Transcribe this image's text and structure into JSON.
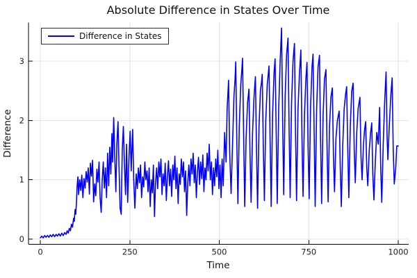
{
  "chart_data": {
    "type": "line",
    "title": "Absolute Difference in States Over Time",
    "xlabel": "Time",
    "ylabel": "Difference",
    "legend": {
      "label": "Difference in States",
      "position": "top-left"
    },
    "series_color": "#0000ff",
    "grid": true,
    "x_ticks": [
      0,
      250,
      500,
      750,
      1000
    ],
    "y_ticks": [
      0,
      1,
      2,
      3
    ],
    "xlim": [
      -33,
      1029
    ],
    "ylim": [
      -0.09,
      3.65
    ],
    "points": [
      [
        0,
        0.02
      ],
      [
        4,
        0.05
      ],
      [
        8,
        0.02
      ],
      [
        12,
        0.06
      ],
      [
        16,
        0.03
      ],
      [
        20,
        0.06
      ],
      [
        24,
        0.03
      ],
      [
        28,
        0.07
      ],
      [
        32,
        0.04
      ],
      [
        36,
        0.08
      ],
      [
        40,
        0.04
      ],
      [
        44,
        0.08
      ],
      [
        48,
        0.05
      ],
      [
        52,
        0.09
      ],
      [
        56,
        0.05
      ],
      [
        60,
        0.1
      ],
      [
        64,
        0.06
      ],
      [
        68,
        0.11
      ],
      [
        72,
        0.08
      ],
      [
        75,
        0.14
      ],
      [
        78,
        0.1
      ],
      [
        81,
        0.18
      ],
      [
        84,
        0.14
      ],
      [
        87,
        0.25
      ],
      [
        90,
        0.2
      ],
      [
        93,
        0.35
      ],
      [
        95,
        0.3
      ],
      [
        97,
        0.5
      ],
      [
        99,
        0.42
      ],
      [
        101,
        0.62
      ],
      [
        103,
        0.9
      ],
      [
        105,
        1.05
      ],
      [
        107,
        0.75
      ],
      [
        110,
        1.0
      ],
      [
        113,
        0.82
      ],
      [
        116,
        1.08
      ],
      [
        119,
        0.7
      ],
      [
        122,
        1.02
      ],
      [
        125,
        0.86
      ],
      [
        128,
        1.14
      ],
      [
        131,
        0.96
      ],
      [
        134,
        1.2
      ],
      [
        137,
        0.76
      ],
      [
        140,
        1.28
      ],
      [
        143,
        1.06
      ],
      [
        146,
        1.33
      ],
      [
        149,
        0.63
      ],
      [
        152,
        0.93
      ],
      [
        155,
        0.73
      ],
      [
        158,
        1.18
      ],
      [
        161,
        0.96
      ],
      [
        164,
        1.3
      ],
      [
        167,
        0.7
      ],
      [
        170,
        0.45
      ],
      [
        173,
        1.0
      ],
      [
        176,
        1.3
      ],
      [
        179,
        0.86
      ],
      [
        182,
        1.2
      ],
      [
        185,
        0.7
      ],
      [
        188,
        1.45
      ],
      [
        191,
        0.9
      ],
      [
        194,
        1.55
      ],
      [
        197,
        1.1
      ],
      [
        200,
        1.78
      ],
      [
        202,
        1.3
      ],
      [
        205,
        2.05
      ],
      [
        208,
        1.4
      ],
      [
        211,
        0.8
      ],
      [
        214,
        1.62
      ],
      [
        217,
        1.98
      ],
      [
        220,
        1.2
      ],
      [
        223,
        0.52
      ],
      [
        226,
        0.42
      ],
      [
        229,
        1.5
      ],
      [
        232,
        1.9
      ],
      [
        235,
        1.28
      ],
      [
        238,
        0.75
      ],
      [
        241,
        1.6
      ],
      [
        244,
        0.62
      ],
      [
        248,
        1.42
      ],
      [
        251,
        1.82
      ],
      [
        254,
        1.15
      ],
      [
        258,
        1.85
      ],
      [
        261,
        1.0
      ],
      [
        264,
        0.52
      ],
      [
        268,
        1.1
      ],
      [
        271,
        0.85
      ],
      [
        274,
        1.2
      ],
      [
        277,
        0.95
      ],
      [
        280,
        1.25
      ],
      [
        283,
        0.7
      ],
      [
        286,
        1.05
      ],
      [
        289,
        0.88
      ],
      [
        292,
        1.3
      ],
      [
        295,
        1.0
      ],
      [
        298,
        1.15
      ],
      [
        301,
        0.8
      ],
      [
        304,
        1.2
      ],
      [
        307,
        0.55
      ],
      [
        310,
        1.0
      ],
      [
        313,
        0.78
      ],
      [
        316,
        1.25
      ],
      [
        319,
        0.38
      ],
      [
        322,
        0.95
      ],
      [
        325,
        1.2
      ],
      [
        328,
        0.85
      ],
      [
        331,
        1.3
      ],
      [
        334,
        1.05
      ],
      [
        337,
        1.35
      ],
      [
        340,
        0.75
      ],
      [
        343,
        1.1
      ],
      [
        346,
        0.9
      ],
      [
        349,
        1.28
      ],
      [
        352,
        0.65
      ],
      [
        355,
        1.05
      ],
      [
        358,
        1.32
      ],
      [
        361,
        0.9
      ],
      [
        364,
        1.18
      ],
      [
        367,
        0.72
      ],
      [
        370,
        1.25
      ],
      [
        373,
        1.0
      ],
      [
        376,
        1.4
      ],
      [
        379,
        0.85
      ],
      [
        382,
        1.2
      ],
      [
        385,
        0.6
      ],
      [
        388,
        1.1
      ],
      [
        391,
        0.92
      ],
      [
        394,
        1.35
      ],
      [
        397,
        1.05
      ],
      [
        400,
        1.3
      ],
      [
        403,
        0.8
      ],
      [
        406,
        1.15
      ],
      [
        409,
        0.4
      ],
      [
        412,
        0.95
      ],
      [
        415,
        1.25
      ],
      [
        418,
        0.9
      ],
      [
        421,
        1.35
      ],
      [
        424,
        1.1
      ],
      [
        427,
        1.45
      ],
      [
        430,
        0.95
      ],
      [
        433,
        1.25
      ],
      [
        436,
        0.7
      ],
      [
        439,
        1.15
      ],
      [
        442,
        1.38
      ],
      [
        445,
        0.92
      ],
      [
        448,
        1.3
      ],
      [
        451,
        1.02
      ],
      [
        454,
        1.42
      ],
      [
        457,
        0.8
      ],
      [
        460,
        1.2
      ],
      [
        463,
        1.0
      ],
      [
        466,
        1.45
      ],
      [
        469,
        1.15
      ],
      [
        472,
        1.6
      ],
      [
        475,
        1.0
      ],
      [
        478,
        1.3
      ],
      [
        481,
        0.75
      ],
      [
        484,
        1.2
      ],
      [
        487,
        0.9
      ],
      [
        490,
        1.35
      ],
      [
        493,
        1.05
      ],
      [
        496,
        1.5
      ],
      [
        499,
        0.85
      ],
      [
        502,
        1.25
      ],
      [
        505,
        0.7
      ],
      [
        508,
        1.35
      ],
      [
        511,
        0.9
      ],
      [
        515,
        1.8
      ],
      [
        519,
        1.3
      ],
      [
        522,
        2.2
      ],
      [
        526,
        2.68
      ],
      [
        529,
        1.5
      ],
      [
        533,
        0.77
      ],
      [
        537,
        1.6
      ],
      [
        541,
        2.4
      ],
      [
        544,
        2.7
      ],
      [
        546,
        2.99
      ],
      [
        549,
        1.7
      ],
      [
        552,
        0.6
      ],
      [
        556,
        1.9
      ],
      [
        560,
        2.6
      ],
      [
        563,
        2.85
      ],
      [
        565,
        3.05
      ],
      [
        568,
        1.8
      ],
      [
        571,
        0.55
      ],
      [
        575,
        1.7
      ],
      [
        579,
        2.3
      ],
      [
        583,
        2.53
      ],
      [
        586,
        1.4
      ],
      [
        589,
        0.62
      ],
      [
        593,
        1.8
      ],
      [
        597,
        2.4
      ],
      [
        601,
        2.74
      ],
      [
        604,
        1.5
      ],
      [
        607,
        0.52
      ],
      [
        611,
        1.9
      ],
      [
        615,
        2.5
      ],
      [
        618,
        2.65
      ],
      [
        620,
        2.78
      ],
      [
        623,
        1.6
      ],
      [
        626,
        0.65
      ],
      [
        630,
        2.0
      ],
      [
        634,
        2.6
      ],
      [
        639,
        2.92
      ],
      [
        642,
        1.7
      ],
      [
        645,
        0.55
      ],
      [
        649,
        2.1
      ],
      [
        653,
        2.8
      ],
      [
        656,
        3.04
      ],
      [
        659,
        1.8
      ],
      [
        662,
        0.6
      ],
      [
        666,
        2.2
      ],
      [
        670,
        3.0
      ],
      [
        674,
        3.56
      ],
      [
        677,
        2.0
      ],
      [
        680,
        0.75
      ],
      [
        684,
        2.4
      ],
      [
        688,
        3.1
      ],
      [
        692,
        3.39
      ],
      [
        695,
        1.9
      ],
      [
        698,
        0.7
      ],
      [
        702,
        2.3
      ],
      [
        706,
        3.0
      ],
      [
        710,
        3.3
      ],
      [
        713,
        1.8
      ],
      [
        716,
        0.65
      ],
      [
        720,
        2.2
      ],
      [
        724,
        2.8
      ],
      [
        728,
        3.19
      ],
      [
        731,
        1.7
      ],
      [
        734,
        0.72
      ],
      [
        738,
        2.1
      ],
      [
        742,
        2.7
      ],
      [
        745,
        2.98
      ],
      [
        748,
        1.6
      ],
      [
        751,
        0.68
      ],
      [
        755,
        2.2
      ],
      [
        759,
        2.9
      ],
      [
        762,
        3.12
      ],
      [
        765,
        1.8
      ],
      [
        768,
        0.55
      ],
      [
        772,
        2.2
      ],
      [
        776,
        2.9
      ],
      [
        780,
        3.1
      ],
      [
        783,
        1.7
      ],
      [
        786,
        0.6
      ],
      [
        790,
        2.1
      ],
      [
        794,
        2.7
      ],
      [
        798,
        2.86
      ],
      [
        801,
        1.6
      ],
      [
        804,
        0.63
      ],
      [
        808,
        1.9
      ],
      [
        812,
        2.4
      ],
      [
        816,
        2.55
      ],
      [
        819,
        1.4
      ],
      [
        822,
        0.8
      ],
      [
        826,
        1.7
      ],
      [
        830,
        2.0
      ],
      [
        835,
        2.16
      ],
      [
        838,
        1.2
      ],
      [
        841,
        0.55
      ],
      [
        845,
        1.6
      ],
      [
        849,
        2.2
      ],
      [
        853,
        2.45
      ],
      [
        856,
        2.57
      ],
      [
        859,
        1.5
      ],
      [
        862,
        0.7
      ],
      [
        866,
        1.9
      ],
      [
        870,
        2.5
      ],
      [
        874,
        2.63
      ],
      [
        877,
        1.5
      ],
      [
        880,
        0.95
      ],
      [
        884,
        1.8
      ],
      [
        888,
        2.2
      ],
      [
        893,
        2.39
      ],
      [
        896,
        1.4
      ],
      [
        899,
        1.0
      ],
      [
        903,
        1.6
      ],
      [
        906,
        1.85
      ],
      [
        909,
        1.98
      ],
      [
        912,
        1.2
      ],
      [
        915,
        0.9
      ],
      [
        919,
        1.5
      ],
      [
        923,
        1.8
      ],
      [
        926,
        1.96
      ],
      [
        929,
        1.1
      ],
      [
        932,
        0.66
      ],
      [
        936,
        1.3
      ],
      [
        940,
        1.8
      ],
      [
        944,
        1.6
      ],
      [
        948,
        2.22
      ],
      [
        951,
        1.2
      ],
      [
        954,
        0.62
      ],
      [
        958,
        1.6
      ],
      [
        962,
        2.3
      ],
      [
        966,
        2.82
      ],
      [
        969,
        1.7
      ],
      [
        971,
        1.34
      ],
      [
        975,
        1.9
      ],
      [
        979,
        2.4
      ],
      [
        983,
        2.72
      ],
      [
        986,
        1.5
      ],
      [
        989,
        0.93
      ],
      [
        993,
        1.2
      ],
      [
        996,
        1.57
      ],
      [
        1000,
        1.57
      ]
    ]
  }
}
